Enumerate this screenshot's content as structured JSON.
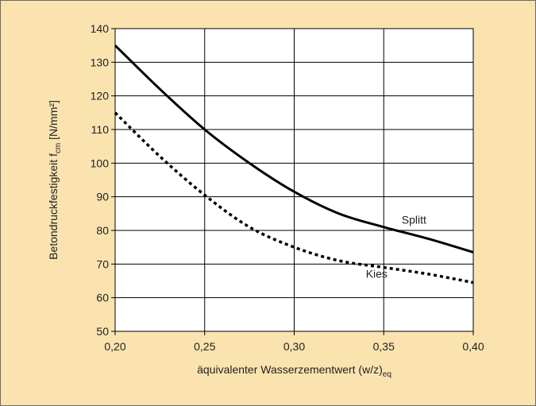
{
  "chart_data": {
    "type": "line",
    "title": "",
    "xlabel": {
      "main": "äquivalenter Wasserzementwert (w/z)",
      "sub": "eq"
    },
    "ylabel": {
      "main": "Betondruckfestigkeit f",
      "sub": "cm",
      "unit": " [N/mm²]"
    },
    "xlim": [
      0.2,
      0.4
    ],
    "ylim": [
      50,
      140
    ],
    "x_ticks": [
      0.2,
      0.25,
      0.3,
      0.35,
      0.4
    ],
    "x_tick_labels": [
      "0,20",
      "0,25",
      "0,30",
      "0,35",
      "0,40"
    ],
    "y_ticks": [
      50,
      60,
      70,
      80,
      90,
      100,
      110,
      120,
      130,
      140
    ],
    "y_tick_labels": [
      "50",
      "60",
      "70",
      "80",
      "90",
      "100",
      "110",
      "120",
      "130",
      "140"
    ],
    "grid": true,
    "colors": {
      "background": "#fbe3b0",
      "plot_area": "#ffffff",
      "line": "#000000",
      "grid": "#000000"
    },
    "series": [
      {
        "name": "Splitt",
        "style": "solid",
        "x": [
          0.2,
          0.225,
          0.25,
          0.275,
          0.3,
          0.325,
          0.35,
          0.375,
          0.4
        ],
        "y": [
          135,
          122,
          110,
          100,
          91.5,
          85,
          81,
          77.5,
          73.5
        ]
      },
      {
        "name": "Kies",
        "style": "dotted",
        "x": [
          0.2,
          0.225,
          0.25,
          0.275,
          0.3,
          0.325,
          0.35,
          0.375,
          0.4
        ],
        "y": [
          115,
          102,
          90.5,
          81,
          75,
          71,
          69,
          67,
          64.5
        ]
      }
    ],
    "series_labels": [
      {
        "text": "Splitt",
        "x": 0.36,
        "y": 82
      },
      {
        "text": "Kies",
        "x": 0.34,
        "y": 66
      }
    ]
  }
}
